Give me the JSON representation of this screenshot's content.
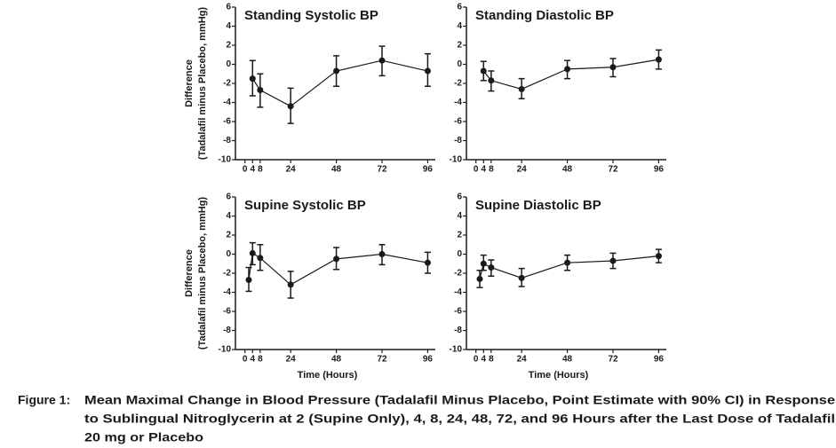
{
  "chart_data": [
    {
      "type": "line",
      "title": "Standing Systolic BP",
      "ylabel": [
        "Difference",
        "(Tadalafil minus Placebo, mmHg)"
      ],
      "x": [
        4,
        8,
        24,
        48,
        72,
        96
      ],
      "values": [
        -1.5,
        -2.7,
        -4.4,
        -0.7,
        0.4,
        -0.7
      ],
      "ci_low": [
        -3.3,
        -4.5,
        -6.2,
        -2.3,
        -1.2,
        -2.3
      ],
      "ci_high": [
        0.4,
        -1.0,
        -2.5,
        0.9,
        1.9,
        1.1
      ],
      "color": "#1a1a1a",
      "xlim": [
        -5,
        100
      ],
      "xticks": [
        0,
        4,
        8,
        24,
        48,
        72,
        96
      ],
      "ylim": [
        -10,
        6
      ],
      "yticks": [
        6,
        4,
        2,
        0,
        -2,
        -4,
        -6,
        -8,
        -10
      ]
    },
    {
      "type": "line",
      "title": "Standing Diastolic BP",
      "x": [
        4,
        8,
        24,
        48,
        72,
        96
      ],
      "values": [
        -0.7,
        -1.7,
        -2.6,
        -0.5,
        -0.3,
        0.5
      ],
      "ci_low": [
        -1.7,
        -2.8,
        -3.6,
        -1.5,
        -1.3,
        -0.5
      ],
      "ci_high": [
        0.3,
        -0.7,
        -1.5,
        0.4,
        0.6,
        1.5
      ],
      "color": "#1a1a1a",
      "xlim": [
        -5,
        100
      ],
      "xticks": [
        0,
        4,
        8,
        24,
        48,
        72,
        96
      ],
      "ylim": [
        -10,
        6
      ],
      "yticks": [
        6,
        4,
        2,
        0,
        -2,
        -4,
        -6,
        -8,
        -10
      ]
    },
    {
      "type": "line",
      "title": "Supine Systolic BP",
      "ylabel": [
        "Difference",
        "(Tadalafil minus Placebo, mmHg)"
      ],
      "xlabel": "Time (Hours)",
      "x": [
        2,
        4,
        8,
        24,
        48,
        72,
        96
      ],
      "values": [
        -2.7,
        0.1,
        -0.4,
        -3.2,
        -0.5,
        0.0,
        -0.9
      ],
      "ci_low": [
        -3.9,
        -1.1,
        -1.7,
        -4.6,
        -1.6,
        -1.1,
        -2.0
      ],
      "ci_high": [
        -1.4,
        1.2,
        1.0,
        -1.8,
        0.7,
        1.0,
        0.2
      ],
      "color": "#1a1a1a",
      "xlim": [
        -5,
        100
      ],
      "xticks": [
        0,
        4,
        8,
        24,
        48,
        72,
        96
      ],
      "ylim": [
        -10,
        6
      ],
      "yticks": [
        6,
        4,
        2,
        0,
        -2,
        -4,
        -6,
        -8,
        -10
      ]
    },
    {
      "type": "line",
      "title": "Supine Diastolic BP",
      "xlabel": "Time (Hours)",
      "x": [
        2,
        4,
        8,
        24,
        48,
        72,
        96
      ],
      "values": [
        -2.6,
        -1.0,
        -1.4,
        -2.5,
        -0.9,
        -0.7,
        -0.2
      ],
      "ci_low": [
        -3.5,
        -1.7,
        -2.3,
        -3.4,
        -1.7,
        -1.5,
        -0.9
      ],
      "ci_high": [
        -1.7,
        -0.1,
        -0.6,
        -1.5,
        -0.1,
        0.1,
        0.5
      ],
      "color": "#1a1a1a",
      "xlim": [
        -5,
        100
      ],
      "xticks": [
        0,
        4,
        8,
        24,
        48,
        72,
        96
      ],
      "ylim": [
        -10,
        6
      ],
      "yticks": [
        6,
        4,
        2,
        0,
        -2,
        -4,
        -6,
        -8,
        -10
      ]
    }
  ],
  "caption": {
    "label": "Figure 1:",
    "lines": [
      "Mean Maximal Change in Blood Pressure (Tadalafil Minus Placebo, Point Estimate with 90% CI) in Response",
      "to Sublingual Nitroglycerin at 2 (Supine Only), 4, 8, 24, 48, 72, and 96 Hours after the Last Dose of Tadalafil",
      "20 mg or Placebo"
    ]
  }
}
